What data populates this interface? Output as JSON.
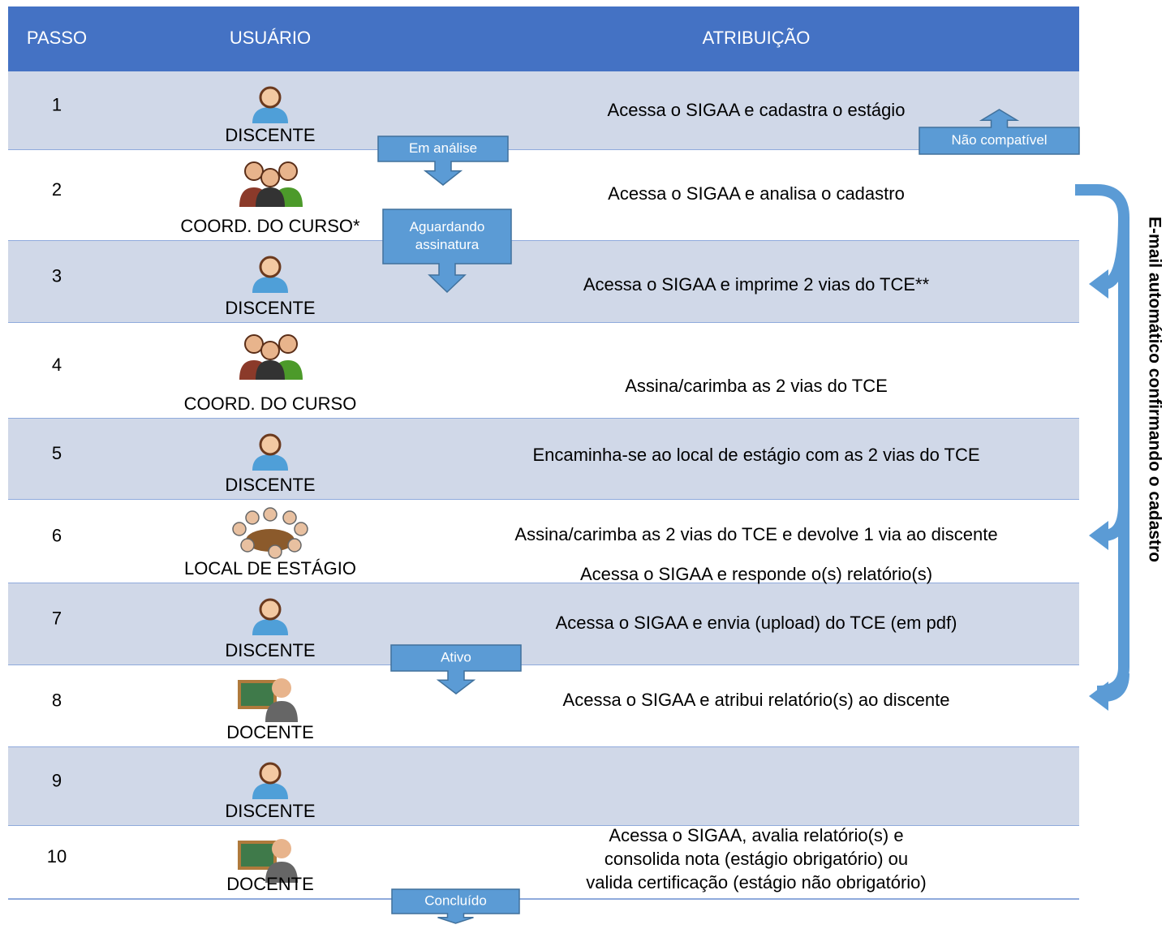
{
  "header": {
    "columns": [
      "PASSO",
      "USUÁRIO",
      "ATRIBUIÇÃO"
    ]
  },
  "rows": [
    {
      "passo": "1",
      "usuario": "DISCENTE",
      "atribuicao": [
        "Acessa o SIGAA e cadastra o estágio"
      ]
    },
    {
      "passo": "2",
      "usuario": "COORD. DO CURSO*",
      "atribuicao": [
        "Acessa o SIGAA e analisa o cadastro"
      ]
    },
    {
      "passo": "3",
      "usuario": "DISCENTE",
      "atribuicao": [
        "Acessa o SIGAA e imprime 2 vias do TCE**"
      ]
    },
    {
      "passo": "4",
      "usuario": "COORD. DO CURSO",
      "atribuicao": [
        "Assina/carimba as 2 vias do TCE"
      ]
    },
    {
      "passo": "5",
      "usuario": "DISCENTE",
      "atribuicao": [
        "Encaminha-se ao local de estágio com as 2 vias do TCE"
      ]
    },
    {
      "passo": "6",
      "usuario": "LOCAL DE ESTÁGIO",
      "atribuicao": [
        "Assina/carimba as 2 vias do TCE e devolve 1 via ao discente"
      ]
    },
    {
      "passo": "7",
      "usuario": "DISCENTE",
      "atribuicao": [
        "Acessa o SIGAA e envia (upload) do TCE (em pdf)"
      ]
    },
    {
      "passo": "8",
      "usuario": "DOCENTE",
      "atribuicao": [
        "Acessa o SIGAA e atribui relatório(s) ao discente"
      ]
    },
    {
      "passo": "9",
      "usuario": "DISCENTE",
      "atribuicao": [
        "Acessa o SIGAA e responde o(s) relatório(s)"
      ]
    },
    {
      "passo": "10",
      "usuario": "DOCENTE",
      "atribuicao": [
        "Acessa o SIGAA, avalia relatório(s) e",
        "consolida nota (estágio obrigatório) ou",
        "valida certificação (estágio não obrigatório)"
      ]
    }
  ],
  "status_callouts": [
    [
      "Em análise"
    ],
    [
      "Aguardando",
      "assinatura"
    ],
    [
      "Ativo"
    ],
    [
      "Concluído"
    ],
    [
      "Não compatível"
    ]
  ],
  "side_label": "E-mail automático confirmando o cadastro"
}
